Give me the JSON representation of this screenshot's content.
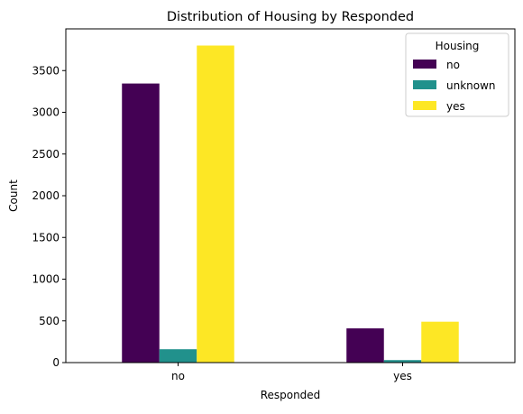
{
  "chart_data": {
    "type": "bar",
    "title": "Distribution of Housing by Responded",
    "xlabel": "Responded",
    "ylabel": "Count",
    "categories": [
      "no",
      "yes"
    ],
    "ylim": [
      0,
      4000
    ],
    "yticks": [
      0,
      500,
      1000,
      1500,
      2000,
      2500,
      3000,
      3500
    ],
    "grid": false,
    "legend": {
      "title": "Housing",
      "placement": "top-right"
    },
    "series": [
      {
        "name": "no",
        "values": [
          3345,
          410
        ],
        "color": "#440154"
      },
      {
        "name": "unknown",
        "values": [
          160,
          30
        ],
        "color": "#21918c"
      },
      {
        "name": "yes",
        "values": [
          3800,
          490
        ],
        "color": "#fde725"
      }
    ]
  }
}
